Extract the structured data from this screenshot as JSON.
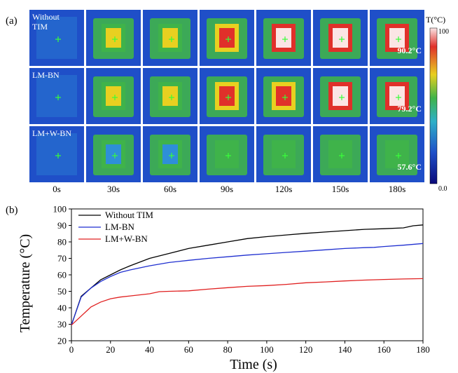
{
  "panel_a": {
    "label": "(a)",
    "rows": [
      {
        "name": "Without\nTIM",
        "max_temp": "90.2°C",
        "heat": 1.0
      },
      {
        "name": "LM-BN",
        "max_temp": "79.2°C",
        "heat": 0.8
      },
      {
        "name": "LM+W-BN",
        "max_temp": "57.6°C",
        "heat": 0.35
      }
    ],
    "time_labels": [
      "0s",
      "30s",
      "60s",
      "90s",
      "120s",
      "150s",
      "180s"
    ],
    "colorbar": {
      "title": "T(°C)",
      "max_label": "100",
      "min_label": "0.0"
    },
    "colors": {
      "cold": "#1f4fc8",
      "cool": "#2e8fd8",
      "mid": "#3fb34a",
      "warm": "#e8d020",
      "hot": "#e0302a",
      "peak": "#fbe5e5"
    }
  },
  "chart_data": {
    "type": "line",
    "panel_label": "(b)",
    "xlabel": "Time (s)",
    "ylabel": "Temperature (°C)",
    "xlim": [
      0,
      180
    ],
    "ylim": [
      20,
      100
    ],
    "xticks": [
      0,
      20,
      40,
      60,
      80,
      100,
      120,
      140,
      160,
      180
    ],
    "yticks": [
      20,
      30,
      40,
      50,
      60,
      70,
      80,
      90,
      100
    ],
    "legend_position": "top-left",
    "grid": false,
    "series": [
      {
        "name": "Without TIM",
        "color": "#000000",
        "x": [
          0,
          5,
          10,
          15,
          20,
          25,
          30,
          40,
          50,
          60,
          70,
          80,
          90,
          100,
          110,
          120,
          130,
          140,
          150,
          160,
          170,
          175,
          180
        ],
        "y": [
          29.5,
          47,
          52,
          57,
          60,
          63,
          65.5,
          70,
          73,
          76,
          78,
          80,
          82,
          83.2,
          84.2,
          85.2,
          86,
          86.8,
          87.6,
          88,
          88.5,
          89.8,
          90.3
        ]
      },
      {
        "name": "LM-BN",
        "color": "#1f2fd0",
        "x": [
          0,
          5,
          10,
          15,
          20,
          25,
          30,
          40,
          50,
          60,
          70,
          80,
          90,
          100,
          110,
          120,
          130,
          140,
          150,
          155,
          160,
          170,
          180
        ],
        "y": [
          29.5,
          46.5,
          52,
          56,
          59,
          61.5,
          63,
          65.5,
          67.5,
          68.8,
          70,
          71,
          72,
          72.8,
          73.6,
          74.4,
          75.2,
          76,
          76.5,
          76.7,
          77.2,
          78,
          79
        ]
      },
      {
        "name": "LM+W-BN",
        "color": "#e02020",
        "x": [
          0,
          5,
          10,
          15,
          20,
          25,
          30,
          40,
          45,
          50,
          60,
          70,
          80,
          90,
          100,
          110,
          120,
          130,
          140,
          150,
          160,
          170,
          180
        ],
        "y": [
          29.5,
          35,
          40.5,
          43.5,
          45.5,
          46.5,
          47.2,
          48.5,
          49.8,
          50,
          50.3,
          51.3,
          52.2,
          53,
          53.5,
          54.2,
          55.2,
          55.7,
          56.3,
          56.8,
          57.2,
          57.5,
          57.7
        ]
      }
    ]
  }
}
